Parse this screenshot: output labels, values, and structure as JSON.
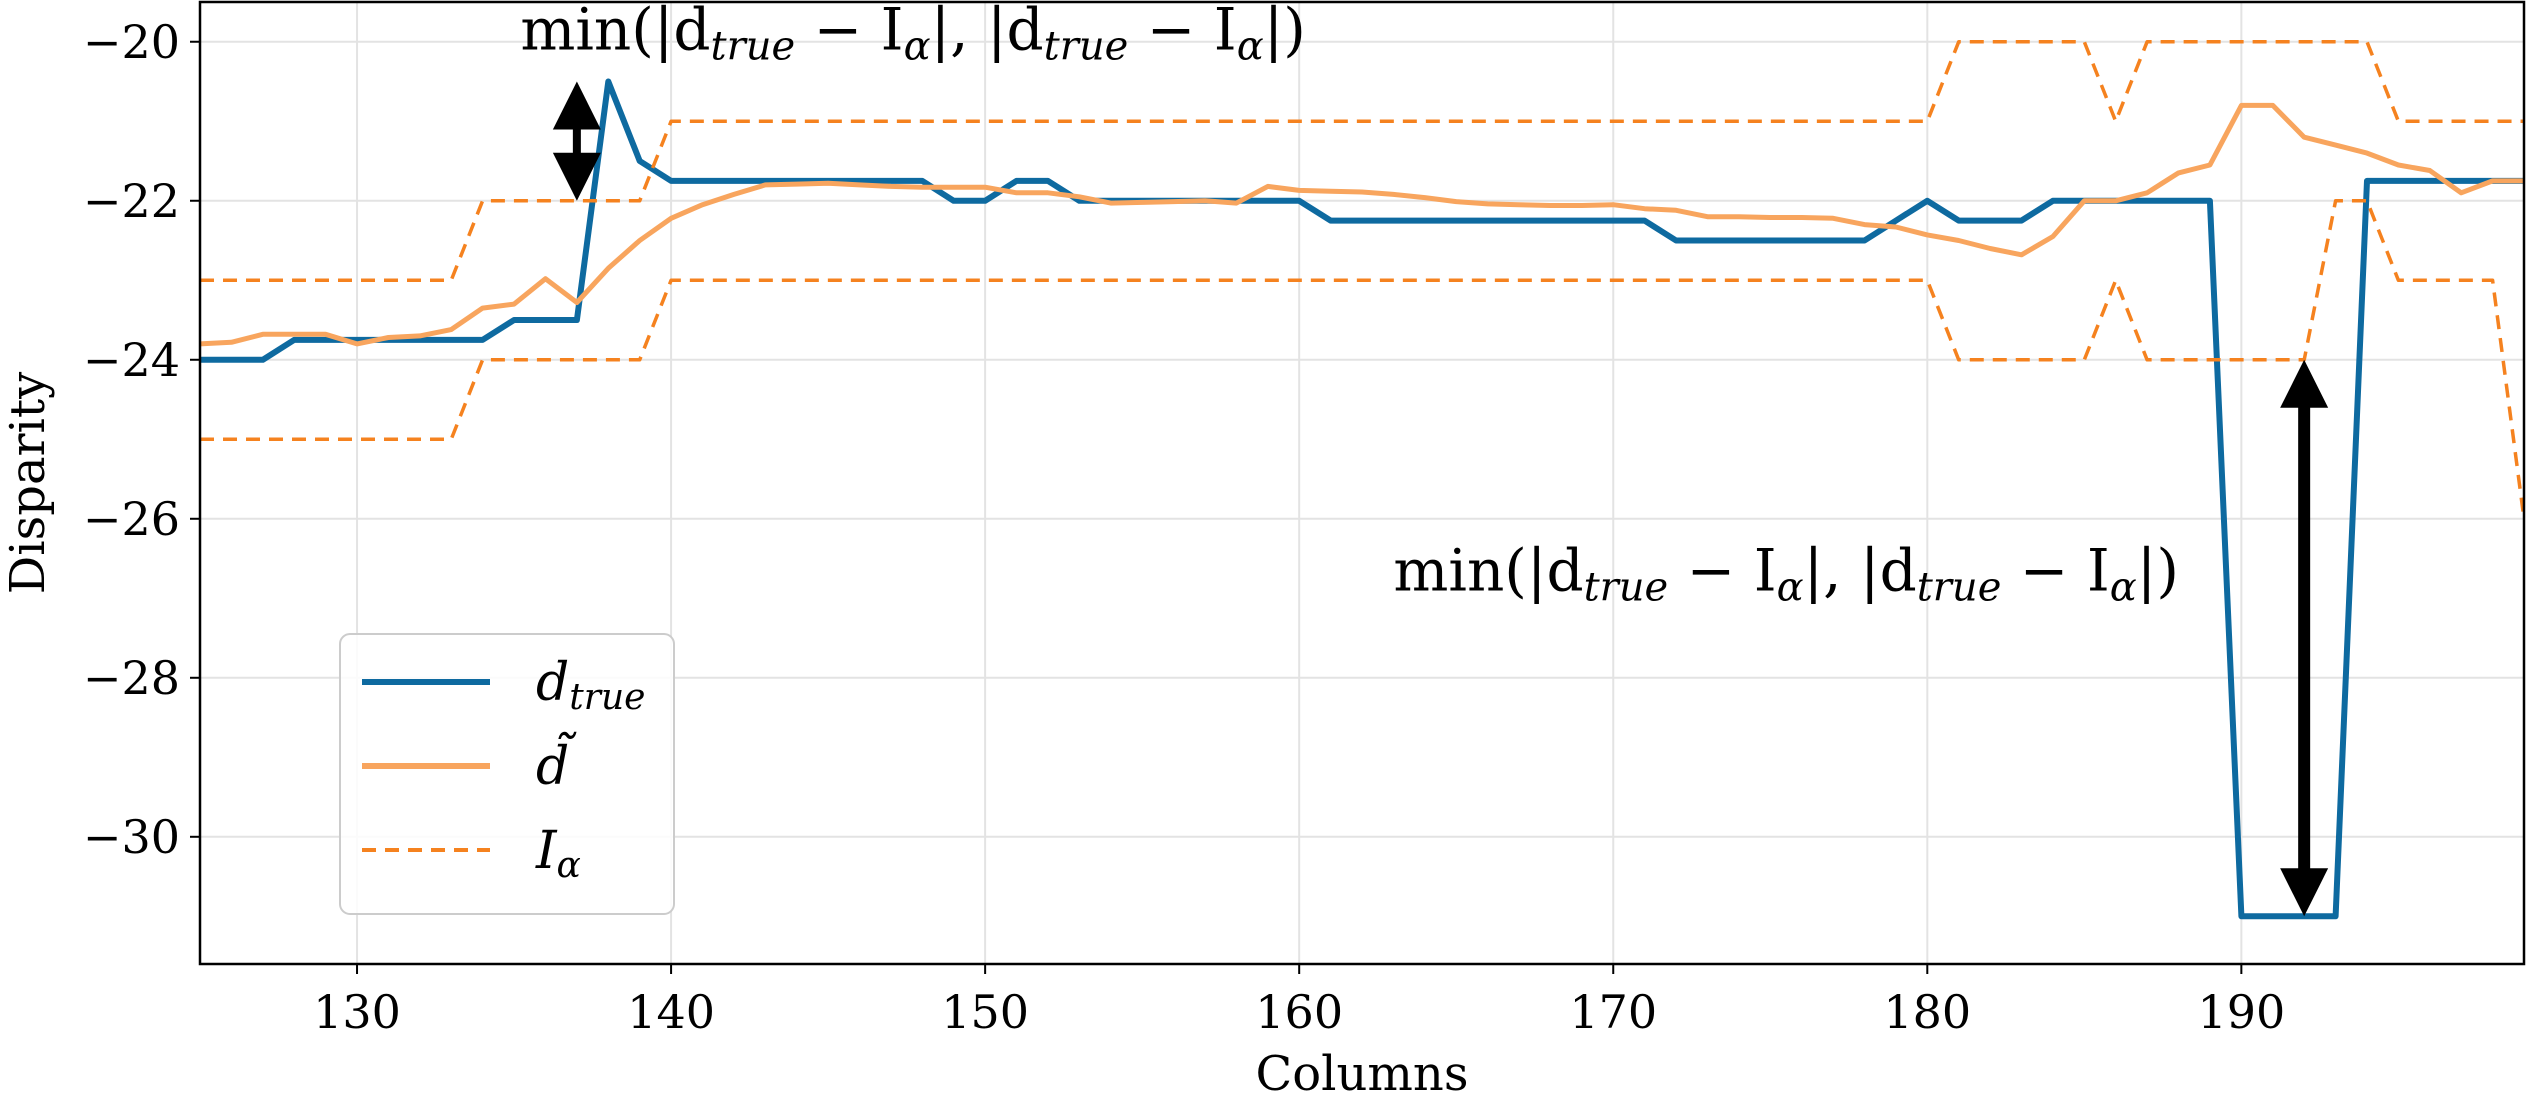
{
  "chart_data": {
    "type": "line",
    "xlabel": "Columns",
    "ylabel": "Disparity",
    "xlim": [
      125,
      199
    ],
    "ylim": [
      -31.6,
      -19.5
    ],
    "xticks": [
      130,
      140,
      150,
      160,
      170,
      180,
      190
    ],
    "yticks": [
      -20,
      -22,
      -24,
      -26,
      -28,
      -30
    ],
    "xtick_labels": [
      "130",
      "140",
      "150",
      "160",
      "170",
      "180",
      "190"
    ],
    "ytick_labels": [
      "−20",
      "−22",
      "−24",
      "−26",
      "−28",
      "−30"
    ],
    "grid": true,
    "legend_position": "lower-left",
    "series": [
      {
        "name": "d_true",
        "legend_main": "d",
        "legend_sub": "true",
        "color": "#0e6aa0",
        "style": "solid",
        "x": [
          125,
          126,
          127,
          128,
          129,
          130,
          131,
          132,
          133,
          134,
          135,
          136,
          137,
          138,
          139,
          140,
          141,
          142,
          143,
          144,
          145,
          146,
          147,
          148,
          149,
          150,
          151,
          152,
          153,
          154,
          155,
          156,
          157,
          158,
          159,
          160,
          161,
          162,
          163,
          164,
          165,
          166,
          167,
          168,
          169,
          170,
          171,
          172,
          173,
          174,
          175,
          176,
          177,
          178,
          179,
          180,
          181,
          182,
          183,
          184,
          185,
          186,
          187,
          188,
          189,
          190,
          191,
          192,
          193,
          194,
          195,
          196,
          197,
          198,
          199
        ],
        "y": [
          -24,
          -24,
          -24,
          -23.75,
          -23.75,
          -23.75,
          -23.75,
          -23.75,
          -23.75,
          -23.75,
          -23.5,
          -23.5,
          -23.5,
          -20.5,
          -21.5,
          -21.75,
          -21.75,
          -21.75,
          -21.75,
          -21.75,
          -21.75,
          -21.75,
          -21.75,
          -21.75,
          -22,
          -22,
          -21.75,
          -21.75,
          -22,
          -22,
          -22,
          -22,
          -22,
          -22,
          -22,
          -22,
          -22.25,
          -22.25,
          -22.25,
          -22.25,
          -22.25,
          -22.25,
          -22.25,
          -22.25,
          -22.25,
          -22.25,
          -22.25,
          -22.5,
          -22.5,
          -22.5,
          -22.5,
          -22.5,
          -22.5,
          -22.5,
          -22.25,
          -22,
          -22.25,
          -22.25,
          -22.25,
          -22,
          -22,
          -22,
          -22,
          -22,
          -22,
          -31,
          -31,
          -31,
          -31,
          -21.75,
          -21.75,
          -21.75,
          -21.75,
          -21.75,
          -21.75
        ]
      },
      {
        "name": "d_tilde",
        "legend_main": "d̃",
        "legend_sub": "",
        "color": "#f8a55e",
        "style": "solid",
        "x": [
          125,
          126,
          127,
          128,
          129,
          130,
          131,
          132,
          133,
          134,
          135,
          136,
          137,
          138,
          139,
          140,
          141,
          142,
          143,
          144,
          145,
          146,
          147,
          148,
          149,
          150,
          151,
          152,
          153,
          154,
          155,
          156,
          157,
          158,
          159,
          160,
          161,
          162,
          163,
          164,
          165,
          166,
          167,
          168,
          169,
          170,
          171,
          172,
          173,
          174,
          175,
          176,
          177,
          178,
          179,
          180,
          181,
          182,
          183,
          184,
          185,
          186,
          187,
          188,
          189,
          190,
          191,
          192,
          193,
          194,
          195,
          196,
          197,
          198,
          199
        ],
        "y": [
          -23.8,
          -23.78,
          -23.68,
          -23.68,
          -23.68,
          -23.8,
          -23.72,
          -23.7,
          -23.62,
          -23.35,
          -23.3,
          -22.98,
          -23.28,
          -22.85,
          -22.5,
          -22.22,
          -22.05,
          -21.92,
          -21.8,
          -21.79,
          -21.78,
          -21.8,
          -21.82,
          -21.83,
          -21.83,
          -21.83,
          -21.9,
          -21.9,
          -21.95,
          -22.03,
          -22.02,
          -22.01,
          -22.0,
          -22.03,
          -21.82,
          -21.87,
          -21.88,
          -21.89,
          -21.92,
          -21.96,
          -22.01,
          -22.04,
          -22.05,
          -22.06,
          -22.06,
          -22.05,
          -22.1,
          -22.12,
          -22.2,
          -22.2,
          -22.21,
          -22.21,
          -22.22,
          -22.3,
          -22.33,
          -22.43,
          -22.5,
          -22.6,
          -22.68,
          -22.45,
          -22.0,
          -22.0,
          -21.9,
          -21.65,
          -21.55,
          -20.8,
          -20.8,
          -21.2,
          -21.3,
          -21.4,
          -21.55,
          -21.62,
          -21.9,
          -21.75,
          -21.75
        ]
      },
      {
        "name": "I_alpha_upper",
        "legend_main": "I",
        "legend_sub": "α",
        "color": "#f5821f",
        "style": "dashed",
        "x": [
          125,
          126,
          127,
          128,
          129,
          130,
          131,
          132,
          133,
          134,
          135,
          136,
          137,
          138,
          139,
          140,
          141,
          142,
          143,
          144,
          145,
          146,
          147,
          148,
          149,
          150,
          151,
          152,
          153,
          154,
          155,
          156,
          157,
          158,
          159,
          160,
          161,
          162,
          163,
          164,
          165,
          166,
          167,
          168,
          169,
          170,
          171,
          172,
          173,
          174,
          175,
          176,
          177,
          178,
          179,
          180,
          181,
          182,
          183,
          184,
          185,
          186,
          187,
          188,
          189,
          190,
          191,
          192,
          193,
          194,
          195,
          196,
          197,
          198,
          199
        ],
        "y": [
          -23,
          -23,
          -23,
          -23,
          -23,
          -23,
          -23,
          -23,
          -23,
          -22,
          -22,
          -22,
          -22,
          -22,
          -22,
          -21,
          -21,
          -21,
          -21,
          -21,
          -21,
          -21,
          -21,
          -21,
          -21,
          -21,
          -21,
          -21,
          -21,
          -21,
          -21,
          -21,
          -21,
          -21,
          -21,
          -21,
          -21,
          -21,
          -21,
          -21,
          -21,
          -21,
          -21,
          -21,
          -21,
          -21,
          -21,
          -21,
          -21,
          -21,
          -21,
          -21,
          -21,
          -21,
          -21,
          -21,
          -20,
          -20,
          -20,
          -20,
          -20,
          -21,
          -20,
          -20,
          -20,
          -20,
          -20,
          -20,
          -20,
          -20,
          -21,
          -21,
          -21,
          -21,
          -21
        ]
      },
      {
        "name": "I_alpha_lower",
        "legend_main": "",
        "legend_sub": "",
        "color": "#f5821f",
        "style": "dashed",
        "x": [
          125,
          126,
          127,
          128,
          129,
          130,
          131,
          132,
          133,
          134,
          135,
          136,
          137,
          138,
          139,
          140,
          141,
          142,
          143,
          144,
          145,
          146,
          147,
          148,
          149,
          150,
          151,
          152,
          153,
          154,
          155,
          156,
          157,
          158,
          159,
          160,
          161,
          162,
          163,
          164,
          165,
          166,
          167,
          168,
          169,
          170,
          171,
          172,
          173,
          174,
          175,
          176,
          177,
          178,
          179,
          180,
          181,
          182,
          183,
          184,
          185,
          186,
          187,
          188,
          189,
          190,
          191,
          192,
          193,
          194,
          195,
          196,
          197,
          198,
          199
        ],
        "y": [
          -25,
          -25,
          -25,
          -25,
          -25,
          -25,
          -25,
          -25,
          -25,
          -24,
          -24,
          -24,
          -24,
          -24,
          -24,
          -23,
          -23,
          -23,
          -23,
          -23,
          -23,
          -23,
          -23,
          -23,
          -23,
          -23,
          -23,
          -23,
          -23,
          -23,
          -23,
          -23,
          -23,
          -23,
          -23,
          -23,
          -23,
          -23,
          -23,
          -23,
          -23,
          -23,
          -23,
          -23,
          -23,
          -23,
          -23,
          -23,
          -23,
          -23,
          -23,
          -23,
          -23,
          -23,
          -23,
          -23,
          -24,
          -24,
          -24,
          -24,
          -24,
          -23,
          -24,
          -24,
          -24,
          -24,
          -24,
          -24,
          -22,
          -22,
          -23,
          -23,
          -23,
          -23,
          -26
        ]
      }
    ],
    "annotations": [
      {
        "name": "annotation-top",
        "prefix": "min(|d",
        "sub1": "true",
        "mid": " − I",
        "sub2": "α",
        "mid2": "|, |d",
        "sub3": "true",
        "mid3": " − I",
        "sub4": "α",
        "suffix": "|)",
        "anchor_x": 135.2,
        "anchor_y": -20.1,
        "arrow": {
          "x": 137,
          "y_from": -20.5,
          "y_to": -22
        }
      },
      {
        "name": "annotation-right",
        "prefix": "min(|d",
        "sub1": "true",
        "mid": " − I",
        "sub2": "α",
        "mid2": "|, |d",
        "sub3": "true",
        "mid3": " − I",
        "sub4": "α",
        "suffix": "|)",
        "anchor_x": 163.0,
        "anchor_y": -26.9,
        "arrow": {
          "x": 192,
          "y_from": -24,
          "y_to": -31
        }
      }
    ]
  }
}
